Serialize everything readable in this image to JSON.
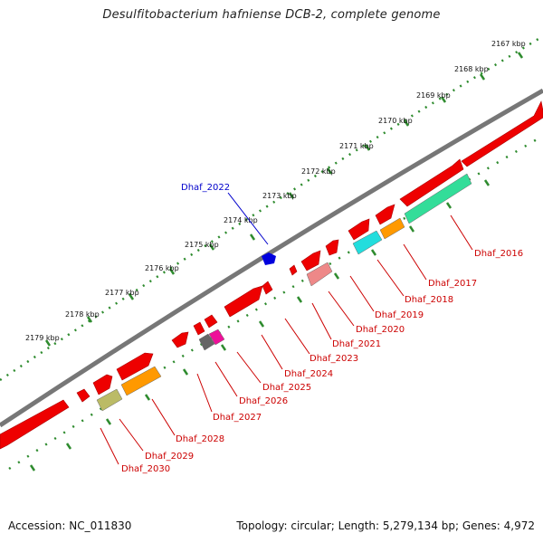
{
  "title": "Desulfitobacterium hafniense DCB-2, complete genome",
  "footer": {
    "accession": "Accession: NC_011830",
    "summary": "Topology: circular; Length: 5,279,134 bp; Genes: 4,972"
  },
  "scale_labels": [
    "2167 kbp",
    "2168 kbp",
    "2169 kbp",
    "2170 kbp",
    "2171 kbp",
    "2172 kbp",
    "2173 kbp",
    "2174 kbp",
    "2175 kbp",
    "2176 kbp",
    "2177 kbp",
    "2178 kbp",
    "2179 kbp"
  ],
  "gene_labels": [
    {
      "text": "Dhaf_2016",
      "color": "#cc0000"
    },
    {
      "text": "Dhaf_2017",
      "color": "#cc0000"
    },
    {
      "text": "Dhaf_2018",
      "color": "#cc0000"
    },
    {
      "text": "Dhaf_2019",
      "color": "#cc0000"
    },
    {
      "text": "Dhaf_2020",
      "color": "#cc0000"
    },
    {
      "text": "Dhaf_2021",
      "color": "#cc0000"
    },
    {
      "text": "Dhaf_2023",
      "color": "#cc0000"
    },
    {
      "text": "Dhaf_2024",
      "color": "#cc0000"
    },
    {
      "text": "Dhaf_2025",
      "color": "#cc0000"
    },
    {
      "text": "Dhaf_2026",
      "color": "#cc0000"
    },
    {
      "text": "Dhaf_2027",
      "color": "#cc0000"
    },
    {
      "text": "Dhaf_2028",
      "color": "#cc0000"
    },
    {
      "text": "Dhaf_2029",
      "color": "#cc0000"
    },
    {
      "text": "Dhaf_2030",
      "color": "#cc0000"
    },
    {
      "text": "Dhaf_2022",
      "color": "#0000cc"
    }
  ],
  "colors": {
    "cds": "#ee0000",
    "backbone": "#777777",
    "gc_dots": "#2e8b2e",
    "reverse_gene": "#0000dd",
    "cog": [
      "#33dd99",
      "#ff9900",
      "#22dddd",
      "#ee8888",
      "#888888",
      "#ee1199",
      "#ff9900",
      "#bbbb66"
    ]
  }
}
